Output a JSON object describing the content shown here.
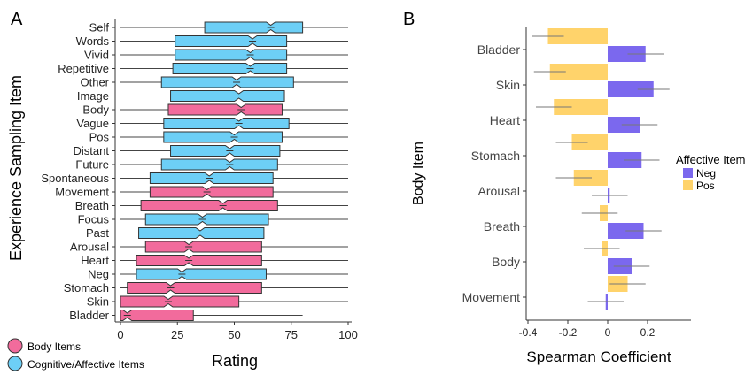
{
  "panels": {
    "a": {
      "label": "A"
    },
    "b": {
      "label": "B"
    }
  },
  "chart_data": [
    {
      "type": "boxplot",
      "orientation": "horizontal",
      "notched": true,
      "xlabel": "Rating",
      "ylabel": "Experience Sampling Item",
      "xlim": [
        0,
        100
      ],
      "xticks": [
        "0",
        "25",
        "50",
        "75",
        "100"
      ],
      "grid": false,
      "categories": [
        "Self",
        "Words",
        "Vivid",
        "Repetitive",
        "Other",
        "Image",
        "Body",
        "Vague",
        "Pos",
        "Distant",
        "Future",
        "Spontaneous",
        "Movement",
        "Breath",
        "Focus",
        "Past",
        "Arousal",
        "Heart",
        "Neg",
        "Stomach",
        "Skin",
        "Bladder"
      ],
      "groups": [
        "cognitive",
        "cognitive",
        "cognitive",
        "cognitive",
        "cognitive",
        "cognitive",
        "body",
        "cognitive",
        "cognitive",
        "cognitive",
        "cognitive",
        "cognitive",
        "body",
        "body",
        "cognitive",
        "cognitive",
        "body",
        "body",
        "cognitive",
        "body",
        "body",
        "body"
      ],
      "boxes": [
        {
          "min": 0,
          "q1": 37,
          "median": 66,
          "q3": 80,
          "max": 100
        },
        {
          "min": 0,
          "q1": 24,
          "median": 58,
          "q3": 73,
          "max": 100
        },
        {
          "min": 0,
          "q1": 24,
          "median": 57,
          "q3": 73,
          "max": 100
        },
        {
          "min": 0,
          "q1": 23,
          "median": 57,
          "q3": 73,
          "max": 100
        },
        {
          "min": 0,
          "q1": 18,
          "median": 51,
          "q3": 76,
          "max": 100
        },
        {
          "min": 0,
          "q1": 22,
          "median": 52,
          "q3": 72,
          "max": 100
        },
        {
          "min": 0,
          "q1": 21,
          "median": 53,
          "q3": 71,
          "max": 100
        },
        {
          "min": 0,
          "q1": 19,
          "median": 52,
          "q3": 74,
          "max": 100
        },
        {
          "min": 0,
          "q1": 19,
          "median": 50,
          "q3": 71,
          "max": 100
        },
        {
          "min": 0,
          "q1": 22,
          "median": 48,
          "q3": 70,
          "max": 100
        },
        {
          "min": 0,
          "q1": 18,
          "median": 48,
          "q3": 69,
          "max": 100
        },
        {
          "min": 0,
          "q1": 13,
          "median": 39,
          "q3": 67,
          "max": 100
        },
        {
          "min": 0,
          "q1": 13,
          "median": 38,
          "q3": 67,
          "max": 100
        },
        {
          "min": 0,
          "q1": 9,
          "median": 45,
          "q3": 69,
          "max": 100
        },
        {
          "min": 0,
          "q1": 11,
          "median": 36,
          "q3": 65,
          "max": 100
        },
        {
          "min": 0,
          "q1": 8,
          "median": 35,
          "q3": 63,
          "max": 100
        },
        {
          "min": 0,
          "q1": 11,
          "median": 30,
          "q3": 62,
          "max": 100
        },
        {
          "min": 0,
          "q1": 7,
          "median": 30,
          "q3": 62,
          "max": 100
        },
        {
          "min": 0,
          "q1": 7,
          "median": 27,
          "q3": 64,
          "max": 100
        },
        {
          "min": 0,
          "q1": 3,
          "median": 22,
          "q3": 62,
          "max": 100
        },
        {
          "min": 0,
          "q1": 0,
          "median": 21,
          "q3": 52,
          "max": 100
        },
        {
          "min": 0,
          "q1": 0,
          "median": 3,
          "q3": 32,
          "max": 80
        }
      ],
      "legend": {
        "placement": "bottom-left",
        "entries": [
          {
            "name": "Body Items",
            "color": "#f26b9c"
          },
          {
            "name": "Cognitive/Affective Items",
            "color": "#6dcff6"
          }
        ]
      }
    },
    {
      "type": "bar",
      "orientation": "horizontal",
      "xlabel": "Spearman Coefficient",
      "ylabel": "Body Item",
      "xlim": [
        -0.4,
        0.4
      ],
      "xticks": [
        "-0.4",
        "-0.2",
        "0",
        "0.2"
      ],
      "grid": false,
      "categories": [
        "Bladder",
        "Skin",
        "Heart",
        "Stomach",
        "Arousal",
        "Breath",
        "Body",
        "Movement"
      ],
      "legend_title": "Affective Item",
      "legend_placement": "right",
      "series": [
        {
          "name": "Neg",
          "color": "#7b68ee",
          "values": [
            0.19,
            0.23,
            0.16,
            0.17,
            0.01,
            0.18,
            0.12,
            -0.01
          ],
          "errors": [
            0.09,
            0.08,
            0.09,
            0.09,
            0.09,
            0.09,
            0.09,
            0.09
          ]
        },
        {
          "name": "Pos",
          "color": "#ffd36b",
          "values": [
            -0.3,
            -0.29,
            -0.27,
            -0.18,
            -0.17,
            -0.04,
            -0.03,
            0.1
          ],
          "errors": [
            0.08,
            0.08,
            0.09,
            0.08,
            0.09,
            0.09,
            0.09,
            0.09
          ]
        }
      ]
    }
  ]
}
